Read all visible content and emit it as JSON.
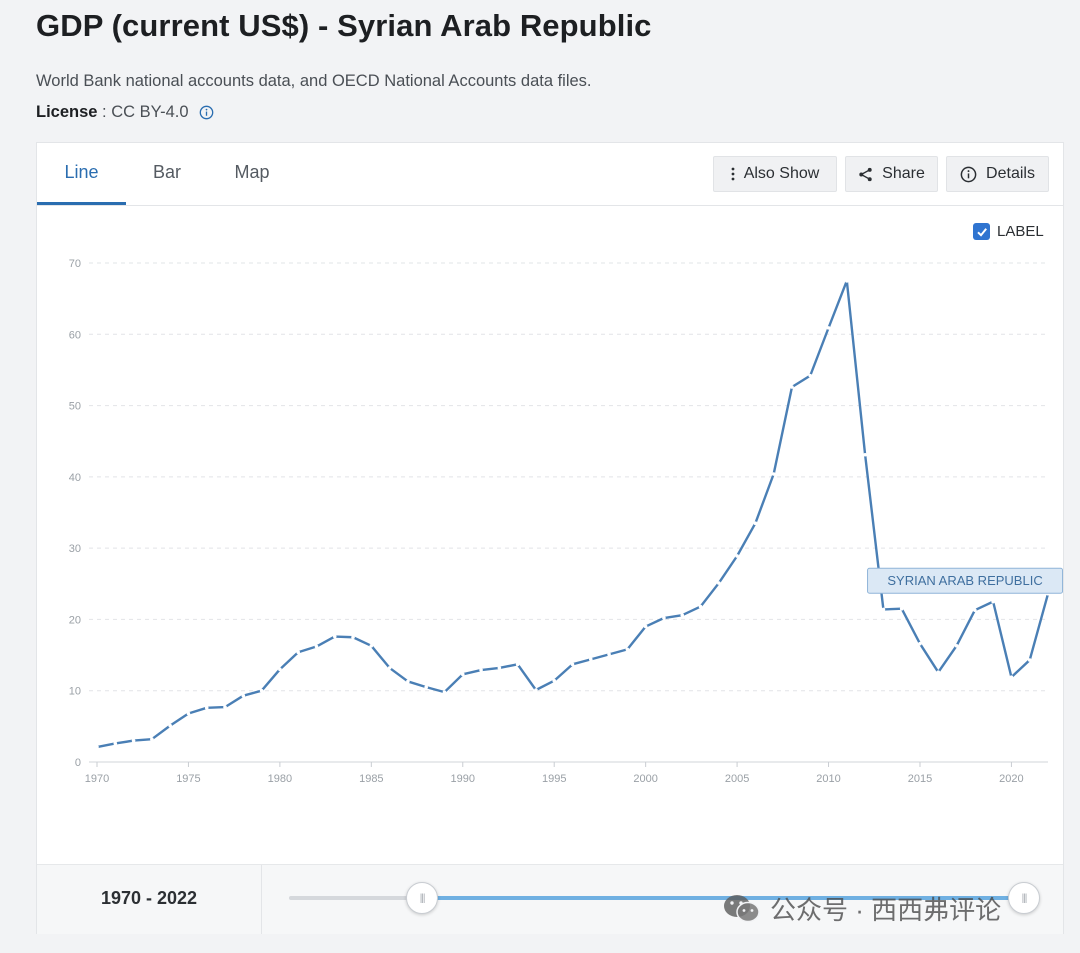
{
  "header": {
    "title": "GDP (current US$) - Syrian Arab Republic",
    "source": "World Bank national accounts data, and OECD National Accounts data files.",
    "license_label": "License",
    "license_separator": " : ",
    "license_value": "CC BY-4.0"
  },
  "tabs": [
    {
      "label": "Line",
      "active": true
    },
    {
      "label": "Bar",
      "active": false
    },
    {
      "label": "Map",
      "active": false
    }
  ],
  "toolbar": {
    "also_show": "Also Show",
    "share": "Share",
    "details": "Details"
  },
  "label_toggle": {
    "text": "LABEL",
    "checked": true
  },
  "chart_data": {
    "type": "line",
    "title": "",
    "xlabel": "",
    "ylabel": "",
    "xlim": [
      1970,
      2022
    ],
    "ylim": [
      0,
      70
    ],
    "yticks": [
      0,
      10,
      20,
      30,
      40,
      50,
      60,
      70
    ],
    "xticks": [
      1970,
      1975,
      1980,
      1985,
      1990,
      1995,
      2000,
      2005,
      2010,
      2015,
      2020
    ],
    "grid": true,
    "line_color": "#4a7fb5",
    "series": [
      {
        "name": "SYRIAN ARAB REPUBLIC",
        "x": [
          1970,
          1971,
          1972,
          1973,
          1974,
          1975,
          1976,
          1977,
          1978,
          1979,
          1980,
          1981,
          1982,
          1983,
          1984,
          1985,
          1986,
          1987,
          1988,
          1989,
          1990,
          1991,
          1992,
          1993,
          1994,
          1995,
          1996,
          1997,
          1998,
          1999,
          2000,
          2001,
          2002,
          2003,
          2004,
          2005,
          2006,
          2007,
          2008,
          2009,
          2010,
          2011,
          2012,
          2013,
          2014,
          2015,
          2016,
          2017,
          2018,
          2019,
          2020,
          2021,
          2022
        ],
        "values": [
          2.1,
          2.6,
          3.0,
          3.2,
          5.1,
          6.8,
          7.6,
          7.7,
          9.3,
          10.0,
          13.0,
          15.4,
          16.2,
          17.6,
          17.5,
          16.3,
          13.2,
          11.3,
          10.5,
          9.8,
          12.3,
          12.9,
          13.2,
          13.7,
          10.1,
          11.4,
          13.7,
          14.4,
          15.1,
          15.8,
          19.0,
          20.2,
          20.6,
          21.8,
          25.1,
          28.9,
          33.5,
          40.4,
          52.6,
          54.2,
          60.9,
          67.5,
          43.1,
          21.4,
          21.5,
          16.6,
          12.6,
          16.3,
          21.3,
          22.5,
          11.9,
          14.3,
          23.6
        ]
      }
    ]
  },
  "range": {
    "label": "1970 - 2022",
    "start_fraction": 0.18,
    "end_fraction": 1.0
  },
  "watermark": {
    "text": "公众号 · 西西弗评论"
  }
}
